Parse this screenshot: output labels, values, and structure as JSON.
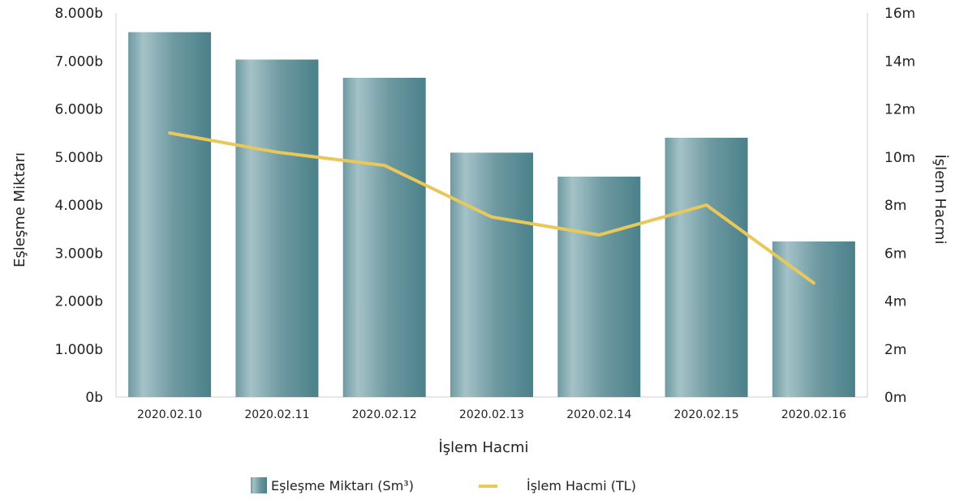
{
  "chart_data": {
    "type": "bar",
    "categories": [
      "2020.02.10",
      "2020.02.11",
      "2020.02.12",
      "2020.02.13",
      "2020.02.14",
      "2020.02.15",
      "2020.02.16"
    ],
    "series": [
      {
        "name": "Eşleşme Miktarı (Sm³)",
        "type": "bar",
        "axis": "left",
        "values": [
          7600,
          7030,
          6650,
          5090,
          4590,
          5400,
          3240
        ],
        "color": "#5b8d96"
      },
      {
        "name": "İşlem Hacmi (TL)",
        "type": "line",
        "axis": "right",
        "values": [
          11.0,
          10.2,
          9.65,
          7.5,
          6.75,
          8.0,
          4.75
        ],
        "color": "#e8c85a"
      }
    ],
    "xlabel": "İşlem Hacmi",
    "ylabel": "Eşleşme Miktarı",
    "y2label": "İşlem Hacmi",
    "ylim": [
      0,
      8000
    ],
    "y2lim": [
      0,
      16
    ],
    "yticks": [
      "0b",
      "1.000b",
      "2.000b",
      "3.000b",
      "4.000b",
      "5.000b",
      "6.000b",
      "7.000b",
      "8.000b"
    ],
    "y2ticks": [
      "0m",
      "2m",
      "4m",
      "6m",
      "8m",
      "10m",
      "12m",
      "14m",
      "16m"
    ],
    "grid": false,
    "legend_position": "bottom-center"
  }
}
